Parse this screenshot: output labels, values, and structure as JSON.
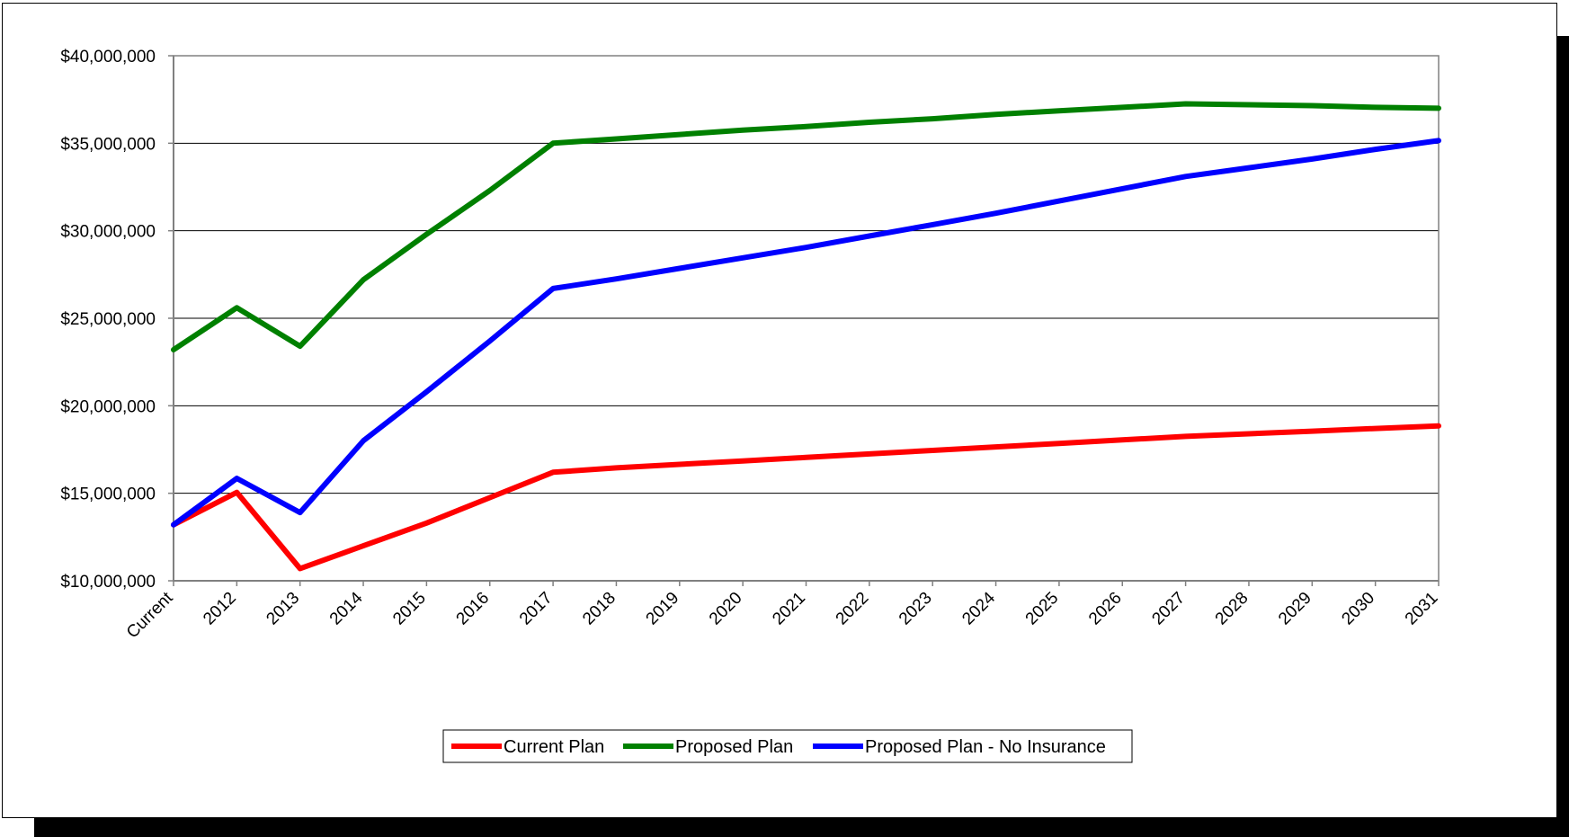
{
  "colors": {
    "current_plan": "#ff0000",
    "proposed_plan": "#008000",
    "proposed_plan_no_insurance": "#0000ff",
    "gridline": "#000000",
    "axis": "#808080"
  },
  "chart_data": {
    "type": "line",
    "title": "",
    "xlabel": "",
    "ylabel": "",
    "categories": [
      "Current",
      "2012",
      "2013",
      "2014",
      "2015",
      "2016",
      "2017",
      "2018",
      "2019",
      "2020",
      "2021",
      "2022",
      "2023",
      "2024",
      "2025",
      "2026",
      "2027",
      "2028",
      "2029",
      "2030",
      "2031"
    ],
    "y_tick_labels": [
      "$10,000,000",
      "$15,000,000",
      "$20,000,000",
      "$25,000,000",
      "$30,000,000",
      "$35,000,000",
      "$40,000,000"
    ],
    "ylim": [
      10000000,
      40000000
    ],
    "grid": "horizontal",
    "legend": "bottom-center",
    "series": [
      {
        "name": "Current Plan",
        "color_key": "current_plan",
        "values": [
          13200000,
          15050000,
          10700000,
          12000000,
          13300000,
          14750000,
          16200000,
          16450000,
          16650000,
          16850000,
          17050000,
          17250000,
          17450000,
          17650000,
          17850000,
          18050000,
          18250000,
          18400000,
          18550000,
          18700000,
          18850000
        ]
      },
      {
        "name": "Proposed Plan",
        "color_key": "proposed_plan",
        "values": [
          23200000,
          25600000,
          23400000,
          27200000,
          29800000,
          32300000,
          35000000,
          35250000,
          35500000,
          35750000,
          35950000,
          36200000,
          36400000,
          36650000,
          36850000,
          37050000,
          37250000,
          37200000,
          37150000,
          37050000,
          37000000
        ]
      },
      {
        "name": "Proposed Plan - No Insurance",
        "color_key": "proposed_plan_no_insurance",
        "values": [
          13200000,
          15850000,
          13900000,
          18000000,
          20800000,
          23700000,
          26700000,
          27250000,
          27850000,
          28450000,
          29050000,
          29700000,
          30350000,
          31000000,
          31700000,
          32400000,
          33100000,
          33600000,
          34100000,
          34650000,
          35150000
        ]
      }
    ]
  }
}
